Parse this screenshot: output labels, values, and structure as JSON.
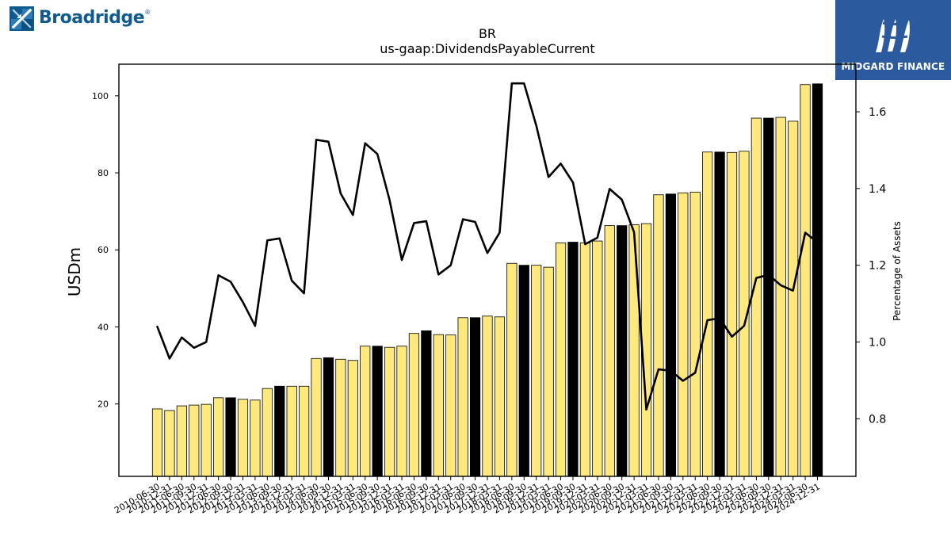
{
  "brand": {
    "left_name": "Broadridge",
    "left_mark": "®",
    "right_name": "MIDGARD FINANCE"
  },
  "colors": {
    "bar_fill": "#ffe97f",
    "highlight_fill": "#000000",
    "line": "#000000",
    "axis": "#000000",
    "right_brand_bg": "#2c5a9f",
    "left_brand": "#0f5b8f"
  },
  "chart_data": {
    "type": "bar",
    "title": "BR",
    "subtitle": "us-gaap:DividendsPayableCurrent",
    "ylabel": "USDm",
    "ylabel_right": "Percentage of Assets",
    "ylim": [
      1.2,
      108.2
    ],
    "ylim_right": [
      0.65,
      1.724
    ],
    "y_ticks": [
      20,
      40,
      60,
      80,
      100
    ],
    "y2_ticks": [
      0.8,
      1.0,
      1.2,
      1.4,
      1.6
    ],
    "tick_labels": [
      "2010-06-30",
      "2010-12-31",
      "2011-06-30",
      "2011-09-30",
      "2011-12-31",
      "2012-06-30",
      "2012-09-30",
      "2012-12-31",
      "2013-03-31",
      "2013-06-30",
      "2013-09-30",
      "2013-12-31",
      "2014-03-31",
      "2014-06-30",
      "2014-09-30",
      "2014-12-31",
      "2015-03-31",
      "2015-06-30",
      "2015-09-30",
      "2015-12-31",
      "2016-03-31",
      "2016-06-30",
      "2016-09-30",
      "2016-12-31",
      "2017-03-31",
      "2017-06-30",
      "2017-09-30",
      "2017-12-31",
      "2018-03-31",
      "2018-06-30",
      "2018-09-30",
      "2018-12-31",
      "2019-03-31",
      "2019-06-30",
      "2019-09-30",
      "2019-12-31",
      "2020-03-31",
      "2020-06-30",
      "2020-09-30",
      "2020-12-31",
      "2021-03-31",
      "2021-06-30",
      "2021-09-30",
      "2021-12-31",
      "2022-03-31",
      "2022-06-30",
      "2022-09-30",
      "2022-12-31",
      "2023-03-31",
      "2023-06-30",
      "2023-09-30",
      "2023-12-31",
      "2024-03-31",
      "2024-06-30",
      "2024-12-31"
    ],
    "bars": [
      18.7,
      18.3,
      19.5,
      19.7,
      19.9,
      21.6,
      21.6,
      21.2,
      21.0,
      24.0,
      24.6,
      24.6,
      24.6,
      31.8,
      32.0,
      31.6,
      31.3,
      35.0,
      35.0,
      34.7,
      35.0,
      38.3,
      39.0,
      38.0,
      37.9,
      42.4,
      42.4,
      42.8,
      42.6,
      56.5,
      56.0,
      56.0,
      55.5,
      61.8,
      62.0,
      61.8,
      62.3,
      66.3,
      66.3,
      66.5,
      66.8,
      74.3,
      74.5,
      74.8,
      75.0,
      85.4,
      85.4,
      85.3,
      85.6,
      94.2,
      94.2,
      94.4,
      93.4,
      102.9,
      103.1
    ],
    "highlight_indices": [
      6,
      10,
      14,
      18,
      22,
      26,
      30,
      34,
      38,
      42,
      46,
      50,
      54
    ],
    "line": [
      1.04,
      0.957,
      1.012,
      0.985,
      1.0,
      1.174,
      1.157,
      1.104,
      1.042,
      1.265,
      1.27,
      1.16,
      1.127,
      1.527,
      1.522,
      1.387,
      1.331,
      1.518,
      1.49,
      1.37,
      1.214,
      1.31,
      1.315,
      1.176,
      1.2,
      1.32,
      1.313,
      1.232,
      1.285,
      1.674,
      1.674,
      1.564,
      1.43,
      1.465,
      1.416,
      1.255,
      1.272,
      1.399,
      1.371,
      1.286,
      0.824,
      0.929,
      0.925,
      0.899,
      0.92,
      1.057,
      1.062,
      1.014,
      1.042,
      1.167,
      1.175,
      1.148,
      1.134,
      1.285,
      1.26
    ],
    "grid": false
  }
}
